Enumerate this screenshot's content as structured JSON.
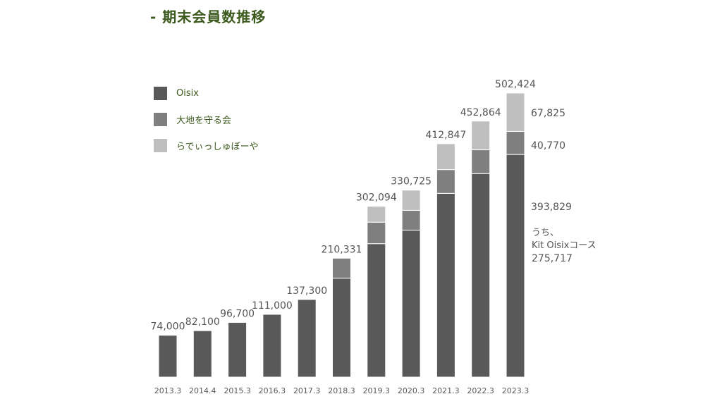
{
  "title": "- 期末会員数推移",
  "chart_data": {
    "type": "bar",
    "stacked": true,
    "categories": [
      "2013.3",
      "2014.4",
      "2015.3",
      "2016.3",
      "2017.3",
      "2018.3",
      "2019.3",
      "2020.3",
      "2021.3",
      "2022.3",
      "2023.3"
    ],
    "totals": [
      74000,
      82100,
      96700,
      111000,
      137300,
      210331,
      302094,
      330725,
      412847,
      452864,
      502424
    ],
    "total_labels": [
      "74,000",
      "82,100",
      "96,700",
      "111,000",
      "137,300",
      "210,331",
      "302,094",
      "330,725",
      "412,847",
      "452,864",
      "502,424"
    ],
    "series": [
      {
        "name": "Oisix",
        "color": "#595959",
        "values": [
          74000,
          82100,
          96700,
          111000,
          137300,
          175000,
          236000,
          260000,
          325000,
          360000,
          393829
        ]
      },
      {
        "name": "大地を守る会",
        "color": "#7f7f7f",
        "values": [
          0,
          0,
          0,
          0,
          0,
          35331,
          38000,
          35000,
          42000,
          42000,
          40770
        ]
      },
      {
        "name": "らでぃっしゅぼーや",
        "color": "#bfbfbf",
        "values": [
          0,
          0,
          0,
          0,
          0,
          0,
          28094,
          35725,
          45847,
          50864,
          67825
        ]
      }
    ],
    "side_labels": {
      "oisix": "393,829",
      "daichi": "40,770",
      "radish": "67,825"
    },
    "note": {
      "line1": "うち、",
      "line2": "Kit Oisixコース",
      "line3": "275,717"
    },
    "ylim": [
      0,
      502424
    ],
    "legend_position": "top-left",
    "grid": false
  }
}
